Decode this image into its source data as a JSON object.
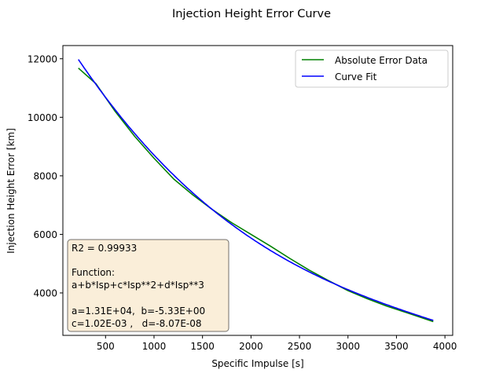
{
  "chart_data": {
    "type": "line",
    "title": "Injection Height Error Curve",
    "xlabel": "Specific Impulse [s]",
    "ylabel": "Injection Height Error [km]",
    "xlim": [
      60,
      4080
    ],
    "ylim": [
      2550,
      12450
    ],
    "xticks": [
      500,
      1000,
      1500,
      2000,
      2500,
      3000,
      3500,
      4000
    ],
    "yticks": [
      4000,
      6000,
      8000,
      10000,
      12000
    ],
    "grid": false,
    "legend_position": "top-right",
    "series": [
      {
        "name": "Absolute Error Data",
        "color": "#008000",
        "x": [
          220,
          400,
          600,
          800,
          1000,
          1200,
          1400,
          1600,
          1800,
          2000,
          2200,
          2400,
          2600,
          2800,
          3000,
          3200,
          3400,
          3600,
          3880
        ],
        "y": [
          11680,
          11150,
          10200,
          9350,
          8600,
          7900,
          7350,
          6850,
          6400,
          6000,
          5600,
          5180,
          4780,
          4420,
          4080,
          3800,
          3550,
          3330,
          3020
        ]
      },
      {
        "name": "Curve Fit",
        "color": "#0000ff",
        "function": "cubic",
        "coefficients": {
          "a": 13100,
          "b": -5.33,
          "c": 0.00102,
          "d": -8.07e-08
        },
        "x_range": [
          220,
          3880
        ]
      }
    ],
    "annotation": {
      "r2": "R2 = 0.99933",
      "function_label": "Function:",
      "function_text": "a+b*Isp+c*Isp**2+d*Isp**3",
      "coef_line1": "a=1.31E+04,  b=-5.33E+00",
      "coef_line2": "c=1.02E-03 ,   d=-8.07E-08"
    }
  }
}
